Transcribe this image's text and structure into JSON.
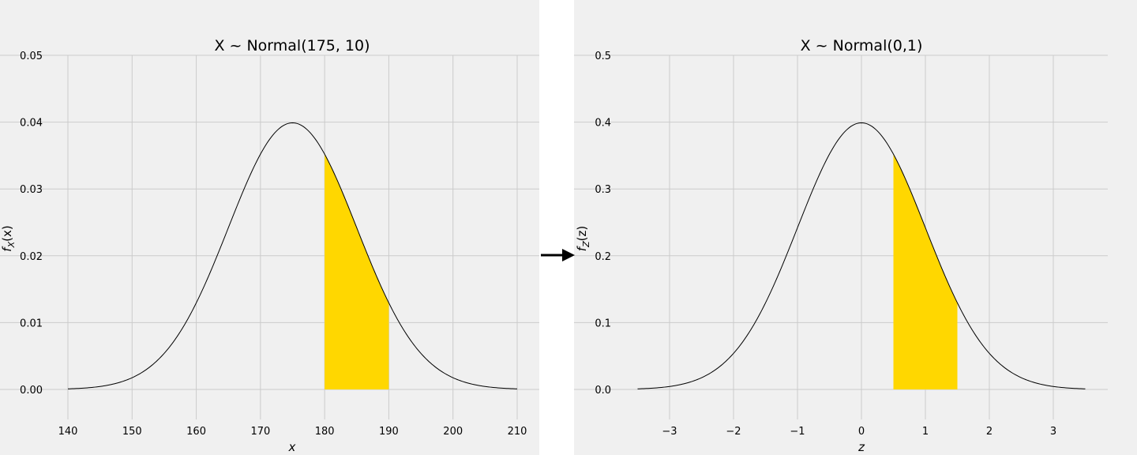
{
  "colors": {
    "panel_bg": "#f0f0f0",
    "page_bg": "#ffffff",
    "grid": "#cbcbcb",
    "curve": "#000000",
    "fill": "#ffd700",
    "arrow": "#000000"
  },
  "arrow_icon": "right-arrow-icon",
  "chart_data": [
    {
      "type": "area",
      "title": "X ~ Normal(175, 10)",
      "xlabel": "x",
      "ylabel": "f_X(x)",
      "ylabel_main": "f",
      "ylabel_sub": "X",
      "ylabel_tail": "(x)",
      "distribution": {
        "mean": 175,
        "sd": 10
      },
      "curve_range": [
        140,
        210
      ],
      "shaded_interval": [
        180,
        190
      ],
      "xlim": [
        137,
        213.5
      ],
      "ylim": [
        -0.0045,
        0.05
      ],
      "xticks": [
        140,
        150,
        160,
        170,
        180,
        190,
        200,
        210
      ],
      "xtick_labels": [
        "140",
        "150",
        "160",
        "170",
        "180",
        "190",
        "200",
        "210"
      ],
      "yticks": [
        0.0,
        0.01,
        0.02,
        0.03,
        0.04,
        0.05
      ],
      "ytick_labels": [
        "0.00",
        "0.01",
        "0.02",
        "0.03",
        "0.04",
        "0.05"
      ],
      "grid": true
    },
    {
      "type": "area",
      "title": "X ~ Normal(0,1)",
      "xlabel": "z",
      "ylabel": "f_Z(z)",
      "ylabel_main": "f",
      "ylabel_sub": "Z",
      "ylabel_tail": "(z)",
      "distribution": {
        "mean": 0,
        "sd": 1
      },
      "curve_range": [
        -3.5,
        3.5
      ],
      "shaded_interval": [
        0.5,
        1.5
      ],
      "xlim": [
        -3.85,
        3.85
      ],
      "ylim": [
        -0.045,
        0.5
      ],
      "xticks": [
        -3,
        -2,
        -1,
        0,
        1,
        2,
        3
      ],
      "xtick_labels": [
        "−3",
        "−2",
        "−1",
        "0",
        "1",
        "2",
        "3"
      ],
      "yticks": [
        0.0,
        0.1,
        0.2,
        0.3,
        0.4,
        0.5
      ],
      "ytick_labels": [
        "0.0",
        "0.1",
        "0.2",
        "0.3",
        "0.4",
        "0.5"
      ],
      "grid": true
    }
  ]
}
